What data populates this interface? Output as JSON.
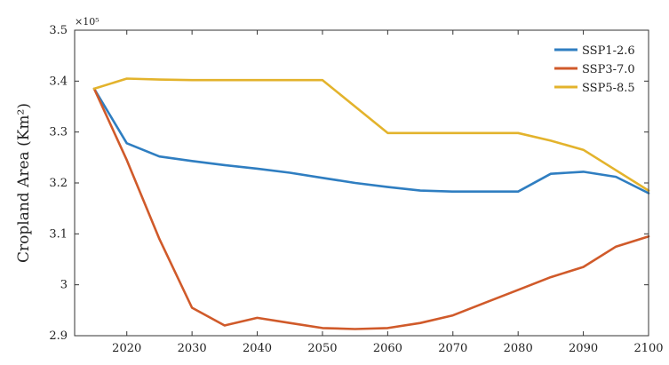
{
  "chart_data": {
    "type": "line",
    "title": "",
    "xlabel": "",
    "ylabel": "Cropland Area (Km²)",
    "y_exponent_label": "×10⁵",
    "xlim": [
      2012,
      2100
    ],
    "ylim": [
      2.9,
      3.5
    ],
    "grid": false,
    "legend_position": "top-right",
    "x_ticks": [
      2020,
      2030,
      2040,
      2050,
      2060,
      2070,
      2080,
      2090,
      2100
    ],
    "y_ticks": [
      2.9,
      3,
      3.1,
      3.2,
      3.3,
      3.4,
      3.5
    ],
    "y_tick_labels": [
      "2.9",
      "3",
      "3.1",
      "3.2",
      "3.3",
      "3.4",
      "3.5"
    ],
    "x": [
      2015,
      2020,
      2025,
      2030,
      2035,
      2040,
      2045,
      2050,
      2055,
      2060,
      2065,
      2070,
      2075,
      2080,
      2085,
      2090,
      2095,
      2100
    ],
    "series": [
      {
        "name": "SSP1-2.6",
        "color": "#2f7ec1",
        "values": [
          3.385,
          3.278,
          3.252,
          3.243,
          3.235,
          3.228,
          3.22,
          3.21,
          3.2,
          3.192,
          3.185,
          3.183,
          3.183,
          3.183,
          3.218,
          3.222,
          3.212,
          3.18
        ]
      },
      {
        "name": "SSP3-7.0",
        "color": "#d05a2a",
        "values": [
          3.385,
          3.245,
          3.09,
          2.955,
          2.92,
          2.935,
          2.925,
          2.915,
          2.913,
          2.915,
          2.925,
          2.94,
          2.965,
          2.99,
          3.015,
          3.035,
          3.075,
          3.095
        ]
      },
      {
        "name": "SSP5-8.5",
        "color": "#e3b32c",
        "values": [
          3.385,
          3.405,
          3.403,
          3.402,
          3.402,
          3.402,
          3.402,
          3.402,
          3.35,
          3.298,
          3.298,
          3.298,
          3.298,
          3.298,
          3.283,
          3.265,
          3.225,
          3.185
        ]
      }
    ]
  }
}
